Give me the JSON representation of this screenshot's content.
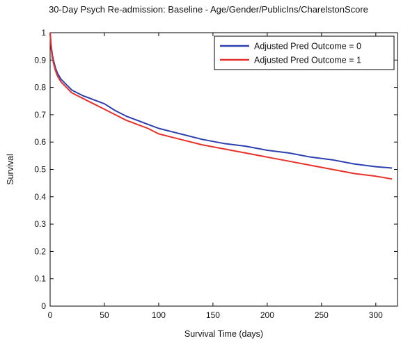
{
  "chart_data": {
    "type": "line",
    "title": "30-Day Psych Re-admission: Baseline - Age/Gender/PublicIns/CharelstonScore",
    "xlabel": "Survival Time (days)",
    "ylabel": "Survival",
    "xlim": [
      0,
      320
    ],
    "ylim": [
      0,
      1
    ],
    "xticks": [
      0,
      50,
      100,
      150,
      200,
      250,
      300
    ],
    "yticks": [
      0,
      0.1,
      0.2,
      0.3,
      0.4,
      0.5,
      0.6,
      0.7,
      0.8,
      0.9,
      1
    ],
    "ytick_labels": [
      "0",
      "0.1",
      "0.2",
      "0.3",
      "0.4",
      "0.5",
      "0.6",
      "0.7",
      "0.8",
      "0.9",
      "1"
    ],
    "grid": false,
    "legend_position": "top-right",
    "series": [
      {
        "name": "Adjusted Pred Outcome = 0",
        "color": "#2b3fae",
        "x": [
          0,
          1,
          2,
          3,
          5,
          7,
          10,
          15,
          20,
          30,
          40,
          50,
          60,
          70,
          80,
          90,
          100,
          120,
          140,
          160,
          180,
          200,
          220,
          240,
          260,
          280,
          300,
          315
        ],
        "y": [
          1.0,
          0.95,
          0.92,
          0.9,
          0.87,
          0.85,
          0.83,
          0.81,
          0.79,
          0.77,
          0.755,
          0.74,
          0.715,
          0.695,
          0.68,
          0.665,
          0.65,
          0.63,
          0.61,
          0.595,
          0.585,
          0.57,
          0.56,
          0.545,
          0.535,
          0.52,
          0.51,
          0.505
        ]
      },
      {
        "name": "Adjusted Pred Outcome = 1",
        "color": "#e8302a",
        "x": [
          0,
          1,
          2,
          3,
          5,
          7,
          10,
          15,
          20,
          30,
          40,
          50,
          60,
          70,
          80,
          90,
          100,
          120,
          140,
          160,
          180,
          200,
          220,
          240,
          260,
          280,
          300,
          315
        ],
        "y": [
          1.0,
          0.94,
          0.91,
          0.89,
          0.86,
          0.84,
          0.82,
          0.8,
          0.78,
          0.76,
          0.74,
          0.72,
          0.7,
          0.68,
          0.665,
          0.65,
          0.63,
          0.61,
          0.59,
          0.575,
          0.56,
          0.545,
          0.53,
          0.515,
          0.5,
          0.485,
          0.475,
          0.465
        ]
      }
    ]
  }
}
